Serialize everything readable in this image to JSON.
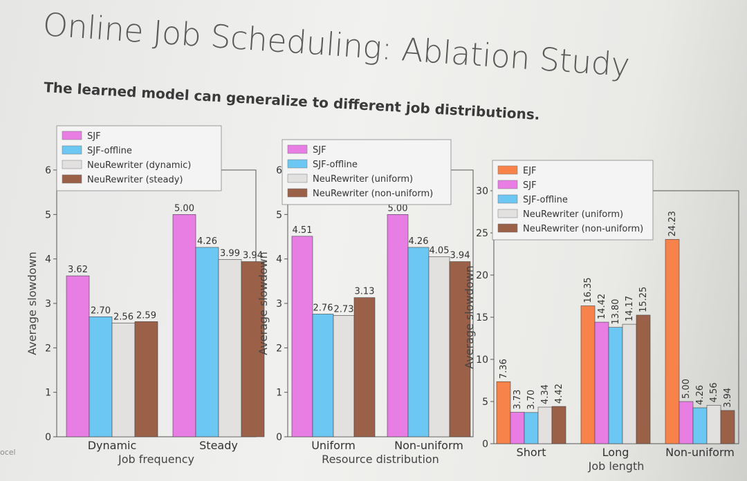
{
  "slide": {
    "title": "Online Job Scheduling: Ablation Study",
    "subtitle": "The learned model can generalize to different job distributions.",
    "footer": "ocel"
  },
  "chart_data": [
    {
      "type": "bar",
      "title": "",
      "xlabel": "Job frequency",
      "ylabel": "Average slowdown",
      "ylim": [
        0,
        6
      ],
      "yticks": [
        0,
        1,
        2,
        3,
        4,
        5,
        6
      ],
      "categories": [
        "Dynamic",
        "Steady"
      ],
      "legend_position": "top-left",
      "series": [
        {
          "name": "SJF",
          "color": "#e87de3",
          "values": [
            3.62,
            5.0
          ]
        },
        {
          "name": "SJF-offline",
          "color": "#6cc7f2",
          "values": [
            2.7,
            4.26
          ]
        },
        {
          "name": "NeuRewriter (dynamic)",
          "color": "#e3e1e0",
          "values": [
            2.56,
            3.99
          ]
        },
        {
          "name": "NeuRewriter (steady)",
          "color": "#9a6048",
          "values": [
            2.59,
            3.94
          ]
        }
      ],
      "value_labels": [
        [
          "3.62",
          "5.00"
        ],
        [
          "2.70",
          "4.26"
        ],
        [
          "2.56",
          "3.99"
        ],
        [
          "2.59",
          "3.94"
        ]
      ]
    },
    {
      "type": "bar",
      "title": "",
      "xlabel": "Resource distribution",
      "ylabel": "Average slowdown",
      "ylim": [
        0,
        6
      ],
      "yticks": [
        0,
        1,
        2,
        3,
        4,
        5,
        6
      ],
      "categories": [
        "Uniform",
        "Non-uniform"
      ],
      "legend_position": "top-left",
      "series": [
        {
          "name": "SJF",
          "color": "#e87de3",
          "values": [
            4.51,
            5.0
          ]
        },
        {
          "name": "SJF-offline",
          "color": "#6cc7f2",
          "values": [
            2.76,
            4.26
          ]
        },
        {
          "name": "NeuRewriter (uniform)",
          "color": "#e3e1e0",
          "values": [
            2.73,
            4.05
          ]
        },
        {
          "name": "NeuRewriter (non-uniform)",
          "color": "#9a6048",
          "values": [
            3.13,
            3.94
          ]
        }
      ],
      "value_labels": [
        [
          "4.51",
          "5.00"
        ],
        [
          "2.76",
          "4.26"
        ],
        [
          "2.73",
          "4.05"
        ],
        [
          "3.13",
          "3.94"
        ]
      ]
    },
    {
      "type": "bar",
      "title": "",
      "xlabel": "Job length",
      "ylabel": "Average slowdown",
      "ylim": [
        0,
        30
      ],
      "yticks": [
        0,
        5,
        10,
        15,
        20,
        25,
        30
      ],
      "categories": [
        "Short",
        "Long",
        "Non-uniform"
      ],
      "legend_position": "top-left",
      "series": [
        {
          "name": "EJF",
          "color": "#f7834a",
          "values": [
            7.36,
            16.35,
            24.23
          ]
        },
        {
          "name": "SJF",
          "color": "#e87de3",
          "values": [
            3.73,
            14.42,
            5.0
          ]
        },
        {
          "name": "SJF-offline",
          "color": "#6cc7f2",
          "values": [
            3.7,
            13.8,
            4.26
          ]
        },
        {
          "name": "NeuRewriter (uniform)",
          "color": "#e3e1e0",
          "values": [
            4.34,
            14.17,
            4.56
          ]
        },
        {
          "name": "NeuRewriter (non-uniform)",
          "color": "#9a6048",
          "values": [
            4.42,
            15.25,
            3.94
          ]
        }
      ],
      "value_labels": [
        [
          "7.36",
          "16.35",
          "24.23"
        ],
        [
          "3.73",
          "14.42",
          "5.00"
        ],
        [
          "3.70",
          "13.80",
          "4.26"
        ],
        [
          "4.34",
          "14.17",
          "4.56"
        ],
        [
          "4.42",
          "15.25",
          "3.94"
        ]
      ]
    }
  ]
}
